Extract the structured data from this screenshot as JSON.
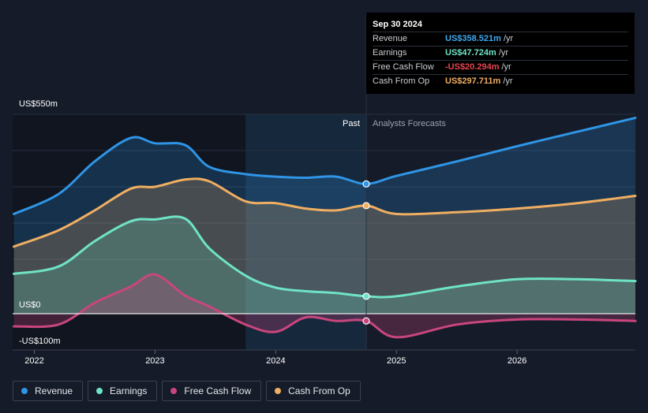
{
  "tooltip": {
    "date": "Sep 30 2024",
    "rows": [
      {
        "label": "Revenue",
        "value": "US$358.521m",
        "unit": "/yr",
        "color": "#3ea8f0"
      },
      {
        "label": "Earnings",
        "value": "US$47.724m",
        "unit": "/yr",
        "color": "#6fe3c5"
      },
      {
        "label": "Free Cash Flow",
        "value": "-US$20.294m",
        "unit": "/yr",
        "color": "#e8444e"
      },
      {
        "label": "Cash From Op",
        "value": "US$297.711m",
        "unit": "/yr",
        "color": "#f0ae62"
      }
    ]
  },
  "legend": [
    {
      "label": "Revenue",
      "color": "#2f95e6"
    },
    {
      "label": "Earnings",
      "color": "#6fe3c5"
    },
    {
      "label": "Free Cash Flow",
      "color": "#c9467e"
    },
    {
      "label": "Cash From Op",
      "color": "#f0ae62"
    }
  ],
  "chart_data": {
    "type": "area",
    "ylim": [
      -100,
      550
    ],
    "y_ticks": [
      "US$550m",
      "US$0",
      "-US$100m"
    ],
    "x_ticks": [
      "2022",
      "2023",
      "2024",
      "2025",
      "2026"
    ],
    "xlim": [
      2021.82,
      2026.98
    ],
    "past_label": "Past",
    "forecast_label": "Analysts Forecasts",
    "past_start": 2023.75,
    "divider_x": 2024.75,
    "series": [
      {
        "name": "Revenue",
        "color": "#2f95e6",
        "x": [
          2021.83,
          2022.2,
          2022.5,
          2022.8,
          2023.0,
          2023.25,
          2023.45,
          2023.75,
          2024.0,
          2024.25,
          2024.5,
          2024.75,
          2025.0,
          2025.5,
          2026.0,
          2026.5,
          2026.98
        ],
        "values": [
          275,
          330,
          420,
          485,
          470,
          465,
          405,
          385,
          378,
          375,
          378,
          358,
          380,
          420,
          462,
          502,
          540
        ]
      },
      {
        "name": "Earnings",
        "color": "#6fe3c5",
        "x": [
          2021.83,
          2022.2,
          2022.5,
          2022.8,
          2023.0,
          2023.25,
          2023.45,
          2023.75,
          2024.0,
          2024.25,
          2024.5,
          2024.75,
          2025.0,
          2025.5,
          2026.0,
          2026.5,
          2026.98
        ],
        "values": [
          110,
          130,
          200,
          255,
          260,
          262,
          180,
          105,
          72,
          62,
          57,
          48,
          48,
          75,
          95,
          95,
          90
        ]
      },
      {
        "name": "Free Cash Flow",
        "color": "#c9467e",
        "x": [
          2021.83,
          2022.2,
          2022.5,
          2022.8,
          2023.0,
          2023.25,
          2023.45,
          2023.75,
          2024.0,
          2024.25,
          2024.5,
          2024.75,
          2025.0,
          2025.5,
          2026.0,
          2026.5,
          2026.98
        ],
        "values": [
          -35,
          -30,
          30,
          75,
          108,
          50,
          20,
          -30,
          -50,
          -10,
          -20,
          -20,
          -65,
          -30,
          -16,
          -16,
          -20
        ]
      },
      {
        "name": "Cash From Op",
        "color": "#f0ae62",
        "x": [
          2021.83,
          2022.2,
          2022.5,
          2022.8,
          2023.0,
          2023.25,
          2023.45,
          2023.75,
          2024.0,
          2024.25,
          2024.5,
          2024.75,
          2025.0,
          2025.5,
          2026.0,
          2026.5,
          2026.98
        ],
        "values": [
          185,
          230,
          285,
          345,
          350,
          370,
          365,
          310,
          305,
          290,
          285,
          298,
          275,
          280,
          290,
          305,
          325
        ]
      }
    ]
  }
}
